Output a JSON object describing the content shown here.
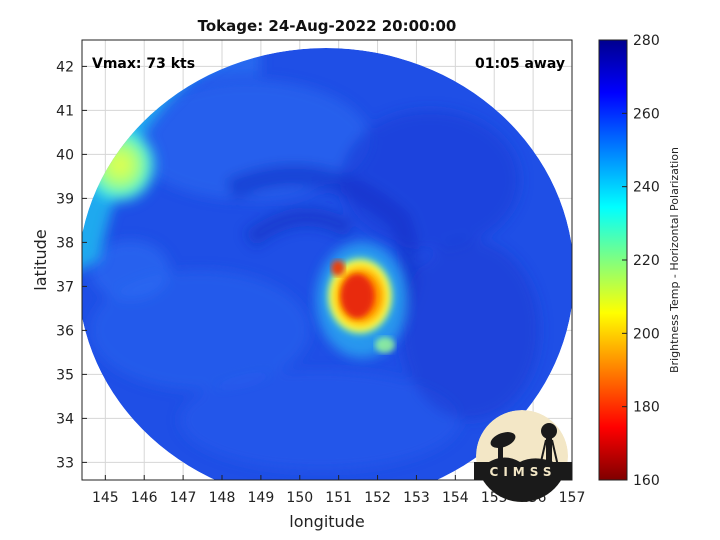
{
  "chart_data": {
    "type": "heatmap",
    "title": "Tokage: 24-Aug-2022 20:00:00",
    "xlabel": "longitude",
    "ylabel": "latitude",
    "xlim": [
      144.4,
      157.0
    ],
    "ylim": [
      32.6,
      42.6
    ],
    "xticks": [
      145,
      146,
      147,
      148,
      149,
      150,
      151,
      152,
      153,
      154,
      155,
      156,
      157
    ],
    "yticks": [
      33,
      34,
      35,
      36,
      37,
      38,
      39,
      40,
      41,
      42
    ],
    "grid": true,
    "annotations": {
      "vmax": "Vmax: 73 kts",
      "away": "01:05 away"
    },
    "swath_center": [
      150.7,
      37.5
    ],
    "storm_center": [
      151.1,
      36.8
    ],
    "colorbar": {
      "label": "Brightness Temp - Horizontal Polarization",
      "range": [
        160,
        280
      ],
      "ticks": [
        160,
        180,
        200,
        220,
        240,
        260,
        280
      ],
      "colors": [
        "#7f0000",
        "#ff0000",
        "#ff8000",
        "#ffff00",
        "#80ff80",
        "#00ffff",
        "#0080ff",
        "#0000ff",
        "#00008f"
      ]
    },
    "logo_text": "CIMSS"
  }
}
